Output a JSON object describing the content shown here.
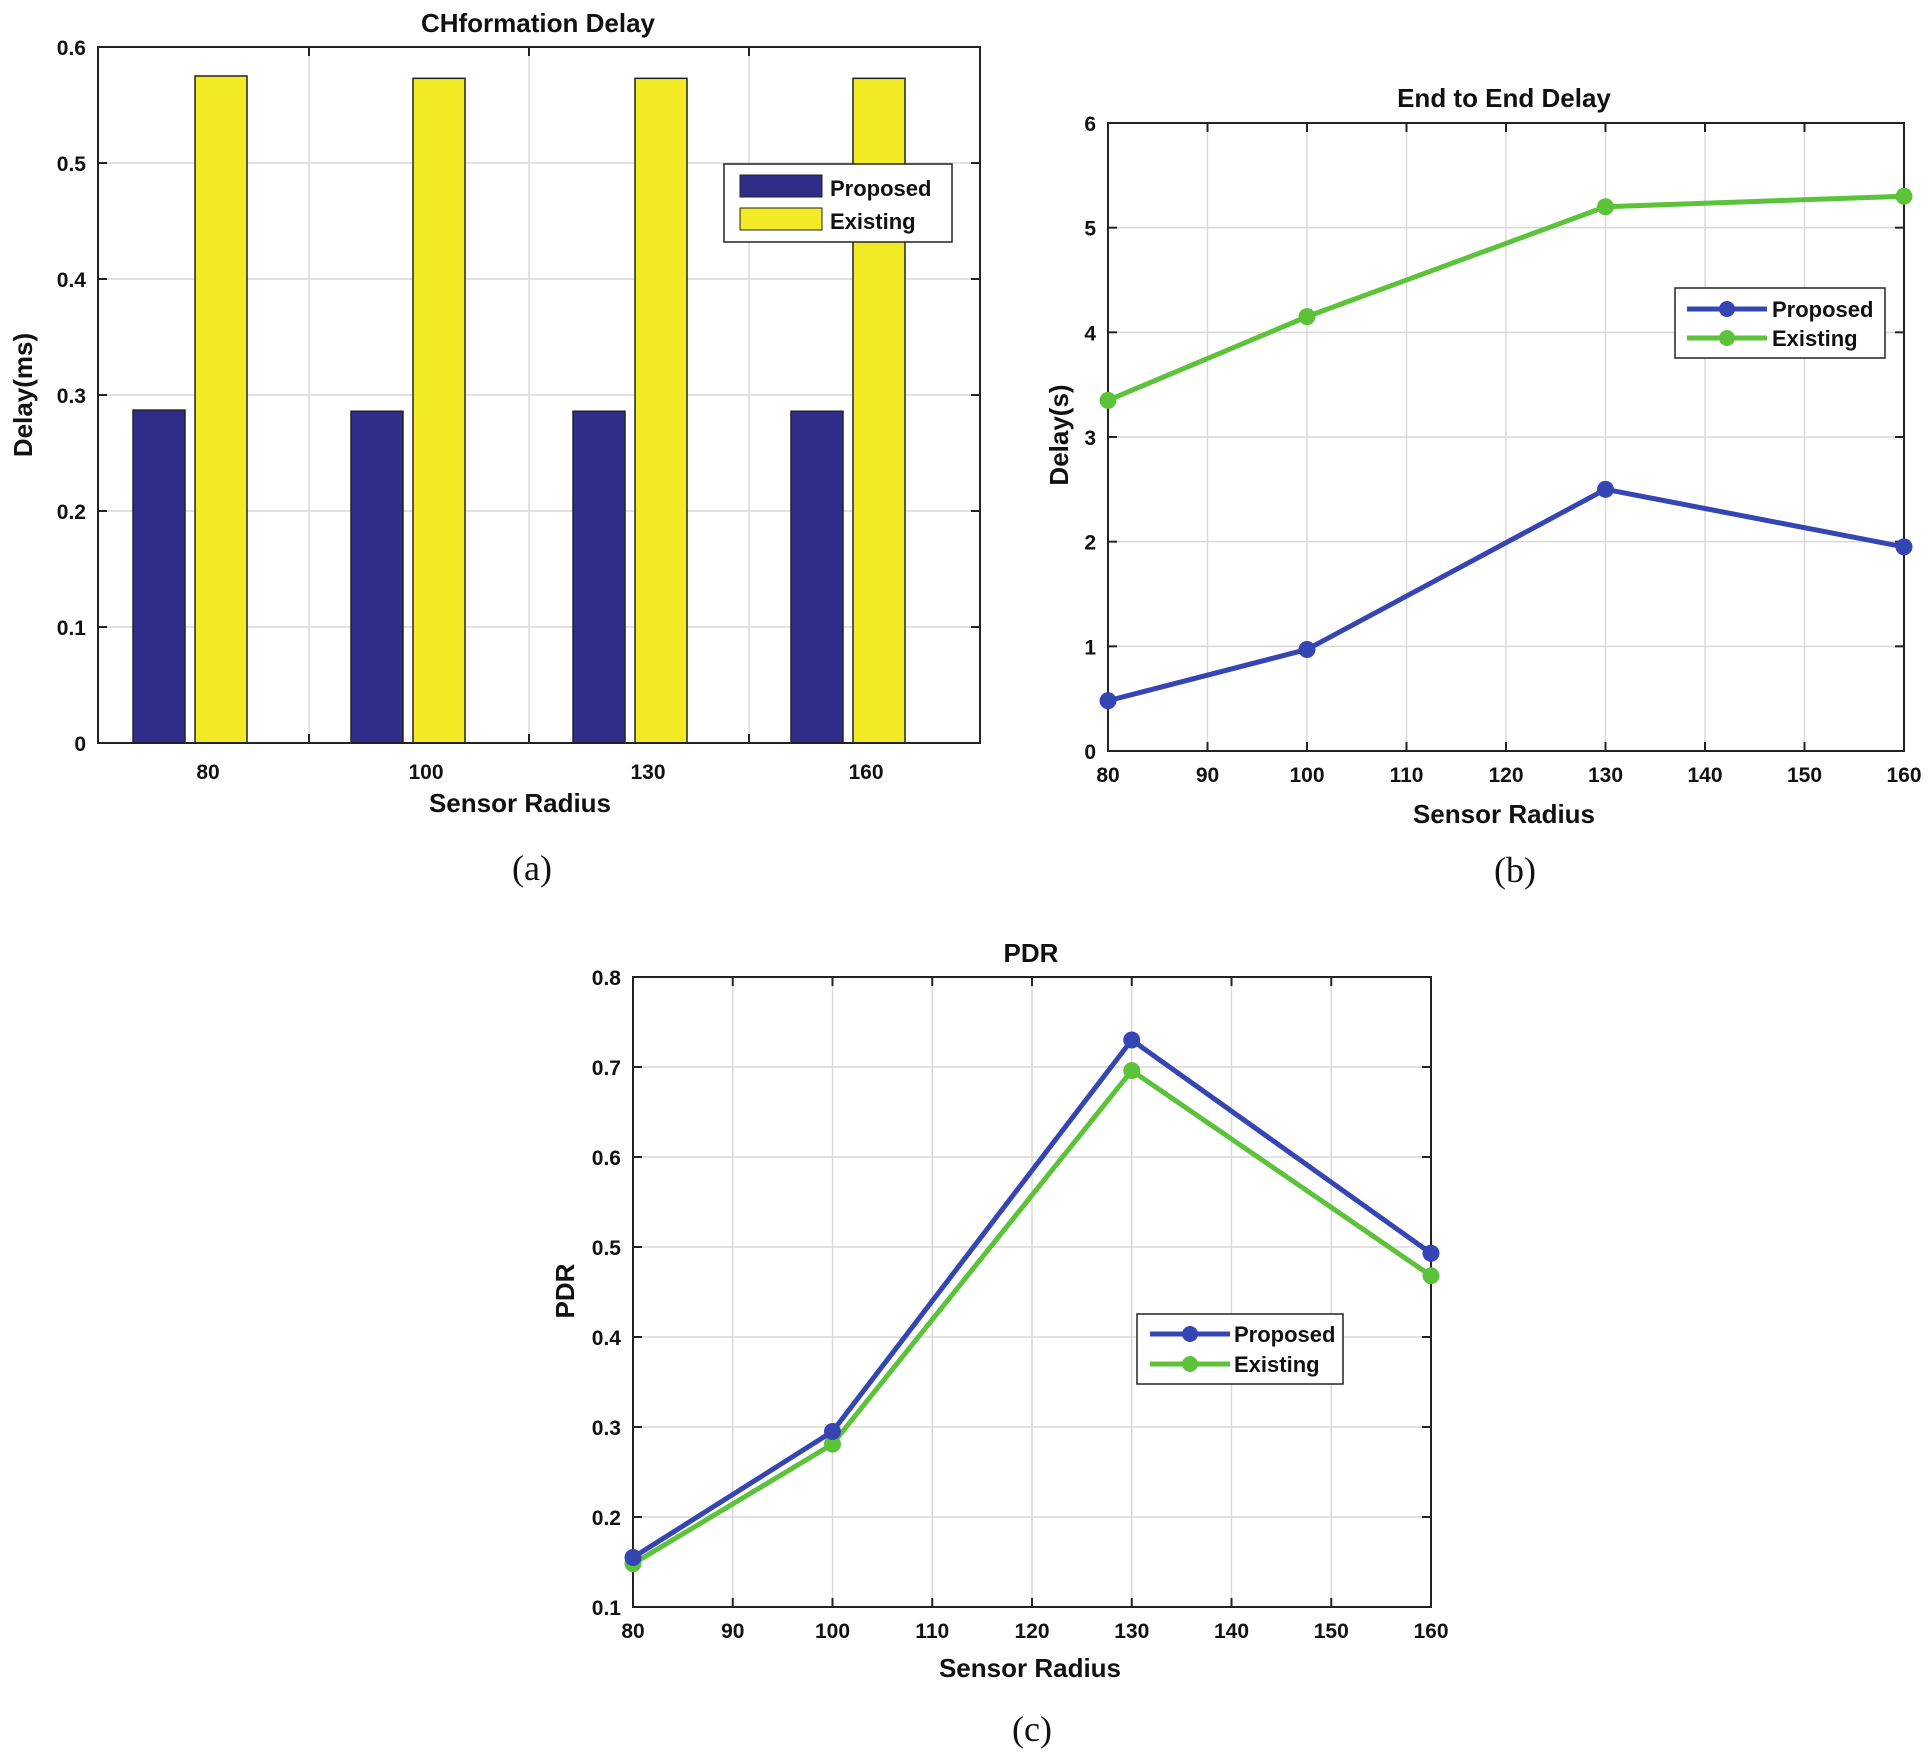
{
  "chart_data": [
    {
      "id": "a",
      "type": "bar",
      "title": "CHformation Delay",
      "xlabel": "Sensor Radius",
      "ylabel": "Delay(ms)",
      "caption": "(a)",
      "categories": [
        "80",
        "100",
        "130",
        "160"
      ],
      "series": [
        {
          "name": "Proposed",
          "values": [
            0.287,
            0.286,
            0.286,
            0.286
          ],
          "color": "#2e2e8a"
        },
        {
          "name": "Existing",
          "values": [
            0.575,
            0.573,
            0.573,
            0.573
          ],
          "color": "#f2ea22"
        }
      ],
      "ylim": [
        0,
        0.6
      ],
      "yticks": [
        "0",
        "0.1",
        "0.2",
        "0.3",
        "0.4",
        "0.5",
        "0.6"
      ],
      "grid": true,
      "legend_position": "top-right"
    },
    {
      "id": "b",
      "type": "line",
      "title": "End to End Delay",
      "xlabel": "Sensor Radius",
      "ylabel": "Delay(s)",
      "caption": "(b)",
      "x": [
        80,
        100,
        130,
        160
      ],
      "series": [
        {
          "name": "Proposed",
          "values": [
            0.48,
            0.97,
            2.5,
            1.95
          ],
          "color": "#3545b3"
        },
        {
          "name": "Existing",
          "values": [
            3.35,
            4.15,
            5.2,
            5.3
          ],
          "color": "#5bc23a"
        }
      ],
      "xlim": [
        80,
        160
      ],
      "ylim": [
        0,
        6
      ],
      "xticks": [
        "80",
        "90",
        "100",
        "110",
        "120",
        "130",
        "140",
        "150",
        "160"
      ],
      "yticks": [
        "0",
        "1",
        "2",
        "3",
        "4",
        "5",
        "6"
      ],
      "grid": true,
      "legend_position": "upper-right"
    },
    {
      "id": "c",
      "type": "line",
      "title": "PDR",
      "xlabel": "Sensor Radius",
      "ylabel": "PDR",
      "caption": "(c)",
      "x": [
        80,
        100,
        130,
        160
      ],
      "series": [
        {
          "name": "Proposed",
          "values": [
            0.155,
            0.295,
            0.73,
            0.493
          ],
          "color": "#3545b3"
        },
        {
          "name": "Existing",
          "values": [
            0.148,
            0.281,
            0.696,
            0.468
          ],
          "color": "#5bc23a"
        }
      ],
      "xlim": [
        80,
        160
      ],
      "ylim": [
        0.1,
        0.8
      ],
      "xticks": [
        "80",
        "90",
        "100",
        "110",
        "120",
        "130",
        "140",
        "150",
        "160"
      ],
      "yticks": [
        "0.1",
        "0.2",
        "0.3",
        "0.4",
        "0.5",
        "0.6",
        "0.7",
        "0.8"
      ],
      "grid": true,
      "legend_position": "center-right"
    }
  ]
}
